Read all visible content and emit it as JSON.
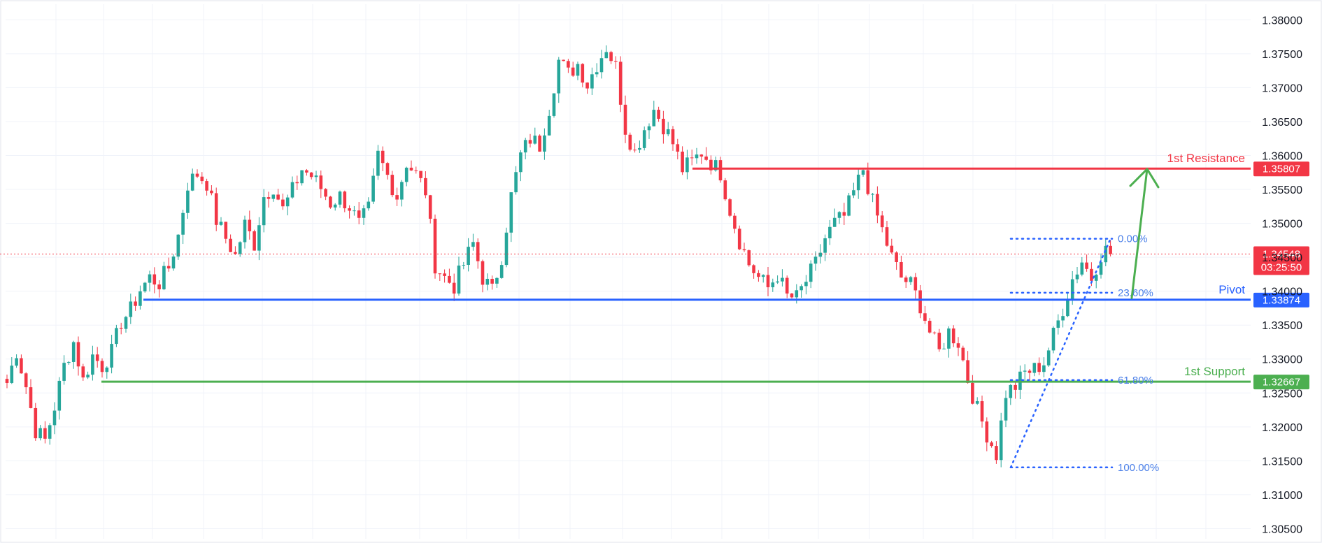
{
  "chart_data": {
    "type": "candlestick",
    "y_axis": {
      "ticks": [
        "1.38000",
        "1.37500",
        "1.37000",
        "1.36500",
        "1.36000",
        "1.35500",
        "1.35000",
        "1.34500",
        "1.34000",
        "1.33500",
        "1.33000",
        "1.32500",
        "1.32000",
        "1.31500",
        "1.31000",
        "1.30500"
      ],
      "ylim": [
        1.3035,
        1.3823
      ],
      "position": "right"
    },
    "grid": true,
    "colors": {
      "up": "#26a69a",
      "down": "#f23645",
      "resistance": "#f23645",
      "pivot": "#2962ff",
      "support": "#4caf50",
      "fib": "#2962ff",
      "grid": "#f0f3fa",
      "current": "#f23645"
    },
    "levels": [
      {
        "name": "1st Resistance",
        "label": "1st Resistance",
        "value": 1.35807,
        "tag": "1.35807",
        "color": "#f23645"
      },
      {
        "name": "Pivot",
        "label": "Pivot",
        "value": 1.33874,
        "tag": "1.33874",
        "color": "#2962ff"
      },
      {
        "name": "1st Support",
        "label": "1st Support",
        "value": 1.32667,
        "tag": "1.32667",
        "color": "#4caf50"
      }
    ],
    "current_price": {
      "value": 1.34548,
      "tag": "1.34548",
      "countdown": "03:25:50"
    },
    "fibonacci": [
      {
        "label": "0.00%",
        "value": 1.34773
      },
      {
        "label": "23.60%",
        "value": 1.33977
      },
      {
        "label": "61.80%",
        "value": 1.3269
      },
      {
        "label": "100.00%",
        "value": 1.31403
      }
    ],
    "projection_arrow": {
      "from": 1.339,
      "to": 1.358,
      "color": "#4caf50"
    },
    "price_anchors": [
      [
        0,
        1.3265
      ],
      [
        2,
        1.3312
      ],
      [
        4,
        1.326
      ],
      [
        6,
        1.3195
      ],
      [
        8,
        1.318
      ],
      [
        10,
        1.323
      ],
      [
        12,
        1.329
      ],
      [
        14,
        1.3325
      ],
      [
        16,
        1.3268
      ],
      [
        18,
        1.3305
      ],
      [
        20,
        1.329
      ],
      [
        22,
        1.331
      ],
      [
        24,
        1.3355
      ],
      [
        26,
        1.3372
      ],
      [
        28,
        1.3402
      ],
      [
        30,
        1.342
      ],
      [
        32,
        1.3412
      ],
      [
        34,
        1.3435
      ],
      [
        36,
        1.3482
      ],
      [
        38,
        1.3558
      ],
      [
        40,
        1.3573
      ],
      [
        42,
        1.356
      ],
      [
        44,
        1.3505
      ],
      [
        46,
        1.3478
      ],
      [
        48,
        1.3452
      ],
      [
        50,
        1.3498
      ],
      [
        52,
        1.347
      ],
      [
        54,
        1.354
      ],
      [
        56,
        1.3555
      ],
      [
        58,
        1.352
      ],
      [
        60,
        1.3548
      ],
      [
        62,
        1.358
      ],
      [
        64,
        1.357
      ],
      [
        66,
        1.3552
      ],
      [
        68,
        1.353
      ],
      [
        70,
        1.354
      ],
      [
        72,
        1.3525
      ],
      [
        74,
        1.3498
      ],
      [
        76,
        1.352
      ],
      [
        78,
        1.36
      ],
      [
        80,
        1.357
      ],
      [
        82,
        1.354
      ],
      [
        84,
        1.359
      ],
      [
        86,
        1.3572
      ],
      [
        88,
        1.3548
      ],
      [
        90,
        1.344
      ],
      [
        92,
        1.342
      ],
      [
        94,
        1.3408
      ],
      [
        96,
        1.344
      ],
      [
        98,
        1.347
      ],
      [
        100,
        1.342
      ],
      [
        102,
        1.34
      ],
      [
        104,
        1.3452
      ],
      [
        106,
        1.354
      ],
      [
        108,
        1.36
      ],
      [
        110,
        1.3625
      ],
      [
        112,
        1.3615
      ],
      [
        114,
        1.367
      ],
      [
        116,
        1.374
      ],
      [
        118,
        1.372
      ],
      [
        120,
        1.3735
      ],
      [
        122,
        1.3705
      ],
      [
        124,
        1.3735
      ],
      [
        126,
        1.376
      ],
      [
        128,
        1.373
      ],
      [
        130,
        1.364
      ],
      [
        132,
        1.3605
      ],
      [
        134,
        1.364
      ],
      [
        136,
        1.3668
      ],
      [
        138,
        1.3645
      ],
      [
        140,
        1.3618
      ],
      [
        142,
        1.358
      ],
      [
        144,
        1.359
      ],
      [
        146,
        1.3605
      ],
      [
        148,
        1.359
      ],
      [
        150,
        1.3575
      ],
      [
        152,
        1.352
      ],
      [
        154,
        1.3475
      ],
      [
        156,
        1.344
      ],
      [
        158,
        1.342
      ],
      [
        160,
        1.3405
      ],
      [
        162,
        1.3425
      ],
      [
        164,
        1.3392
      ],
      [
        166,
        1.339
      ],
      [
        168,
        1.3415
      ],
      [
        170,
        1.344
      ],
      [
        172,
        1.3478
      ],
      [
        174,
        1.35
      ],
      [
        176,
        1.351
      ],
      [
        178,
        1.3545
      ],
      [
        180,
        1.358
      ],
      [
        182,
        1.353
      ],
      [
        184,
        1.349
      ],
      [
        186,
        1.345
      ],
      [
        188,
        1.342
      ],
      [
        190,
        1.341
      ],
      [
        192,
        1.338
      ],
      [
        194,
        1.334
      ],
      [
        196,
        1.331
      ],
      [
        198,
        1.334
      ],
      [
        200,
        1.3325
      ],
      [
        202,
        1.327
      ],
      [
        204,
        1.3225
      ],
      [
        206,
        1.319
      ],
      [
        208,
        1.316
      ],
      [
        210,
        1.325
      ],
      [
        212,
        1.326
      ],
      [
        214,
        1.328
      ],
      [
        216,
        1.3285
      ],
      [
        218,
        1.3295
      ],
      [
        220,
        1.3335
      ],
      [
        222,
        1.3375
      ],
      [
        224,
        1.3418
      ],
      [
        226,
        1.3445
      ],
      [
        228,
        1.342
      ],
      [
        230,
        1.3455
      ],
      [
        231,
        1.346
      ],
      [
        232,
        1.34548
      ]
    ]
  }
}
